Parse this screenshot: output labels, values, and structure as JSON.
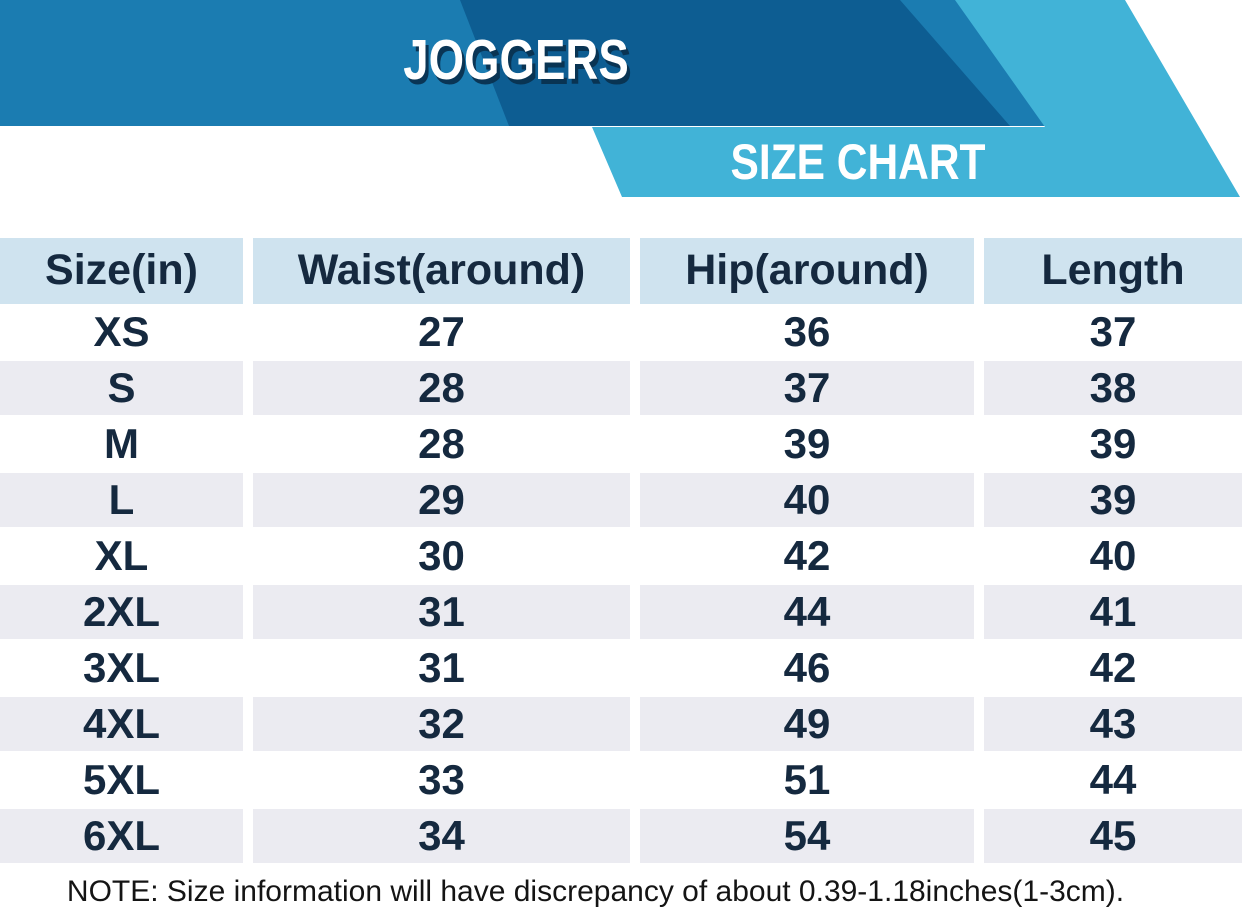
{
  "banner": {
    "title": "JOGGERS",
    "subtitle": "SIZE CHART"
  },
  "chart_data": {
    "type": "table",
    "title": "JOGGERS",
    "subtitle": "SIZE CHART",
    "columns": [
      "Size(in)",
      "Waist(around)",
      "Hip(around)",
      "Length"
    ],
    "rows": [
      [
        "XS",
        "27",
        "36",
        "37"
      ],
      [
        "S",
        "28",
        "37",
        "38"
      ],
      [
        "M",
        "28",
        "39",
        "39"
      ],
      [
        "L",
        "29",
        "40",
        "39"
      ],
      [
        "XL",
        "30",
        "42",
        "40"
      ],
      [
        "2XL",
        "31",
        "44",
        "41"
      ],
      [
        "3XL",
        "31",
        "46",
        "42"
      ],
      [
        "4XL",
        "32",
        "49",
        "43"
      ],
      [
        "5XL",
        "33",
        "51",
        "44"
      ],
      [
        "6XL",
        "34",
        "54",
        "45"
      ]
    ],
    "note": "NOTE: Size information will have discrepancy of about 0.39-1.18inches(1-3cm)."
  },
  "colors": {
    "medium-blue": "#1b7cb1",
    "dark-blue": "#0d5d92",
    "light-blue": "#41b3d7",
    "header-bg": "#cfe3ef",
    "alt-row": "#ebebf1",
    "navy": "#15293f",
    "note-color": "#141414"
  }
}
